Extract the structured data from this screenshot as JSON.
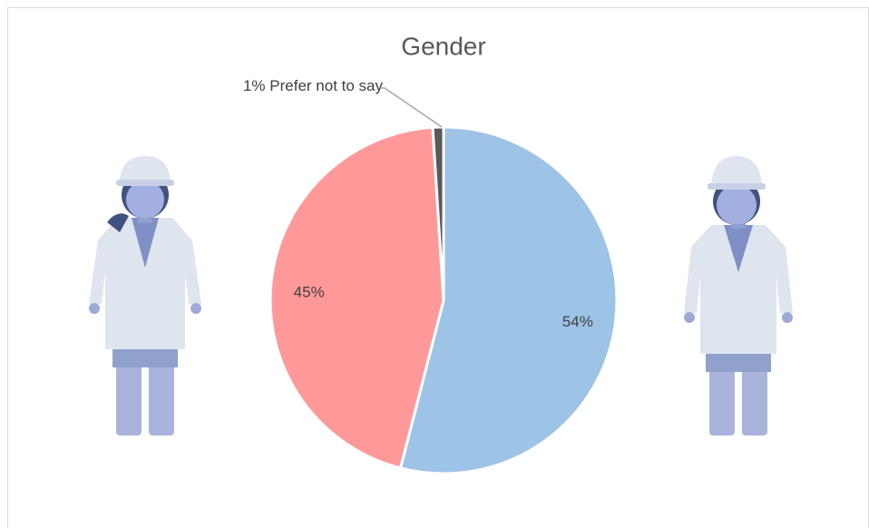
{
  "chart_data": {
    "type": "pie",
    "title": "Gender",
    "categories": [
      null,
      null,
      "Prefer not to say"
    ],
    "values": [
      54,
      45,
      1
    ],
    "value_labels": [
      "54%",
      "45%",
      "1%"
    ],
    "colors": [
      "#9dc3e6",
      "#ff9999",
      "#595959"
    ]
  }
}
